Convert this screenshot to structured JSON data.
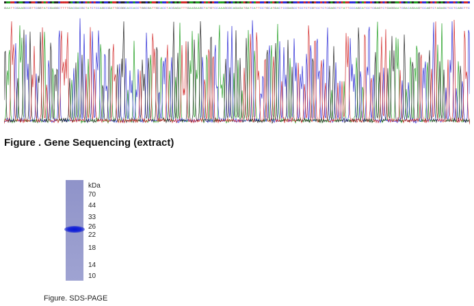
{
  "sequencing": {
    "caption": "Figure . Gene Sequencing (extract)",
    "base_colors": {
      "A": "#1f9e1f",
      "C": "#2a2ad6",
      "G": "#222222",
      "T": "#d22828"
    },
    "sequence": "GAATTCGAAGCCGTTCGGTATCGAGGCTTTTGACGACGCTATCTCCAGCCGATTGCGGCACCACCTGGCGATTGCACCTACGAGATTTGAAGAAGCTATGTCCAAAGCGCAGAGATGATCATTCCTGCATGACTCCGAGCCTCCTCTCGTCCTCTCGAGCTCTATTCCCAGCATCCTCGAGTCTGAGGAATCGACAGAAGTCCAGTCTAGAGCTCCTCAGCTTC"
  },
  "sds_page": {
    "unit_label": "kDa",
    "markers": [
      "70",
      "44",
      "33",
      "26",
      "22",
      "18",
      "14",
      "10"
    ],
    "lane_color": "#969acd",
    "band_color": "#0a17d6",
    "caption": "Figure. SDS-PAGE"
  }
}
